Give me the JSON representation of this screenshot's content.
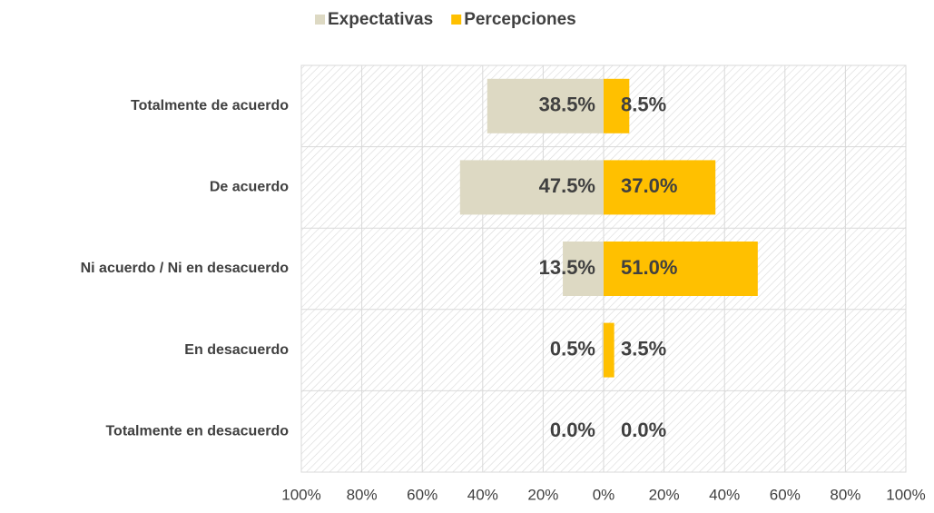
{
  "chart_data": {
    "type": "diverging-bar",
    "categories": [
      "Totalmente de acuerdo",
      "De acuerdo",
      "Ni acuerdo / Ni en desacuerdo",
      "En desacuerdo",
      "Totalmente en desacuerdo"
    ],
    "series": [
      {
        "name": "Expectativas",
        "color": "#ddd9c3",
        "values": [
          -38.5,
          -47.5,
          -13.5,
          -0.5,
          0
        ],
        "value_labels": [
          "38.5%",
          "47.5%",
          "13.5%",
          "0.5%",
          "0.0%"
        ]
      },
      {
        "name": "Percepciones",
        "color": "#ffc000",
        "values": [
          8.5,
          37.0,
          51.0,
          3.5,
          0
        ],
        "value_labels": [
          "8.5%",
          "37.0%",
          "51.0%",
          "3.5%",
          "0.0%"
        ]
      }
    ],
    "xlim": [
      -100,
      100
    ],
    "xticks": [
      {
        "value": -100,
        "label": "100%"
      },
      {
        "value": -80,
        "label": "80%"
      },
      {
        "value": -60,
        "label": "60%"
      },
      {
        "value": -40,
        "label": "40%"
      },
      {
        "value": -20,
        "label": "20%"
      },
      {
        "value": 0,
        "label": "0%"
      },
      {
        "value": 20,
        "label": "20%"
      },
      {
        "value": 40,
        "label": "40%"
      },
      {
        "value": 60,
        "label": "60%"
      },
      {
        "value": 80,
        "label": "80%"
      },
      {
        "value": 100,
        "label": "100%"
      }
    ],
    "grid": true,
    "legend": "top"
  }
}
